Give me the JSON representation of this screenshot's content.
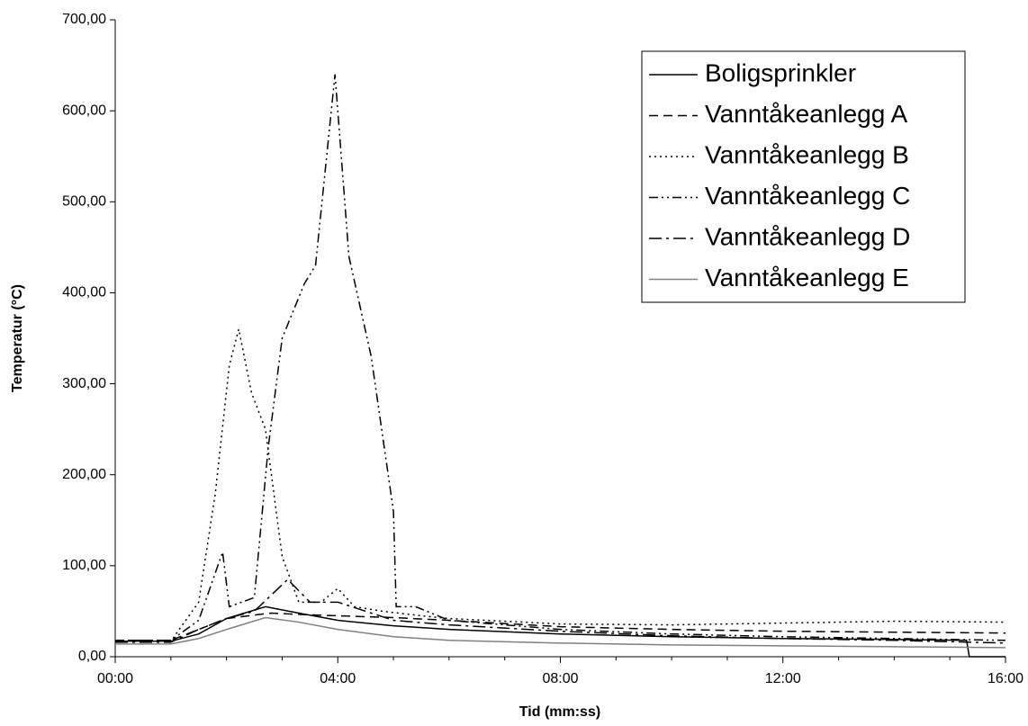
{
  "chart_data": {
    "type": "line",
    "x_label": "Tid (mm:ss)",
    "y_label": "Temperatur (°C)",
    "xlim": [
      0,
      16
    ],
    "xticks": [
      {
        "value": 0,
        "label": "00:00"
      },
      {
        "value": 4,
        "label": "04:00"
      },
      {
        "value": 8,
        "label": "08:00"
      },
      {
        "value": 12,
        "label": "12:00"
      },
      {
        "value": 16,
        "label": "16:00"
      }
    ],
    "x_minor_ticks": [
      1,
      2,
      3,
      5,
      6,
      7,
      9,
      10,
      11,
      13,
      14,
      15
    ],
    "ylim": [
      0,
      700
    ],
    "yticks": [
      {
        "value": 0,
        "label": "0,00"
      },
      {
        "value": 100,
        "label": "100,00"
      },
      {
        "value": 200,
        "label": "200,00"
      },
      {
        "value": 300,
        "label": "300,00"
      },
      {
        "value": 400,
        "label": "400,00"
      },
      {
        "value": 500,
        "label": "500,00"
      },
      {
        "value": 600,
        "label": "600,00"
      },
      {
        "value": 700,
        "label": "700,00"
      }
    ],
    "legend": "upper right",
    "series": [
      {
        "name": "Boligsprinkler",
        "color": "#000000",
        "x": [
          0,
          1,
          1.5,
          2,
          2.7,
          3.3,
          4,
          5,
          6,
          8,
          10,
          12,
          14,
          15.3,
          15.35,
          16
        ],
        "values": [
          17,
          17,
          25,
          42,
          55,
          48,
          40,
          34,
          30,
          25,
          22,
          20,
          19,
          18,
          0,
          0
        ]
      },
      {
        "name": "Vanntåkeanlegg A",
        "color": "#000000",
        "x": [
          0,
          1,
          1.5,
          2,
          2.8,
          3.5,
          4,
          5,
          6,
          8,
          10,
          12,
          14,
          16
        ],
        "values": [
          18,
          18,
          30,
          42,
          48,
          46,
          45,
          43,
          40,
          33,
          30,
          28,
          27,
          26
        ]
      },
      {
        "name": "Vanntåkeanlegg B",
        "color": "#000000",
        "x": [
          0,
          1,
          1.5,
          1.8,
          2.05,
          2.22,
          2.45,
          2.7,
          3.0,
          3.3,
          3.7,
          4.0,
          4.3,
          4.8,
          5.5,
          6,
          8,
          10,
          12,
          14,
          16
        ],
        "values": [
          17,
          17,
          60,
          180,
          320,
          360,
          290,
          250,
          110,
          60,
          60,
          75,
          55,
          50,
          45,
          42,
          36,
          35,
          37,
          39,
          38
        ]
      },
      {
        "name": "Vanntåkeanlegg C",
        "color": "#000000",
        "x": [
          0,
          1,
          1.5,
          1.93,
          2.05,
          2.5,
          2.75,
          3.0,
          3.4,
          3.6,
          3.95,
          4.2,
          4.6,
          5.0,
          5.05,
          5.4,
          6,
          8,
          10,
          12,
          14,
          16
        ],
        "values": [
          18,
          18,
          40,
          115,
          55,
          65,
          230,
          350,
          410,
          430,
          640,
          440,
          330,
          160,
          55,
          55,
          40,
          30,
          25,
          22,
          20,
          18
        ]
      },
      {
        "name": "Vanntåkeanlegg D",
        "color": "#000000",
        "x": [
          0,
          1,
          1.5,
          2,
          2.5,
          3.1,
          3.5,
          4,
          5,
          6,
          8,
          10,
          12,
          14,
          16
        ],
        "values": [
          16,
          16,
          30,
          42,
          50,
          85,
          60,
          60,
          40,
          35,
          28,
          23,
          20,
          18,
          15
        ]
      },
      {
        "name": "Vanntåkeanlegg E",
        "color": "#808080",
        "x": [
          0,
          1,
          1.5,
          2,
          2.7,
          3.3,
          4,
          5,
          6,
          8,
          10,
          12,
          14,
          16
        ],
        "values": [
          14,
          14,
          20,
          30,
          43,
          38,
          30,
          22,
          18,
          15,
          13,
          12,
          11,
          10
        ]
      }
    ]
  }
}
